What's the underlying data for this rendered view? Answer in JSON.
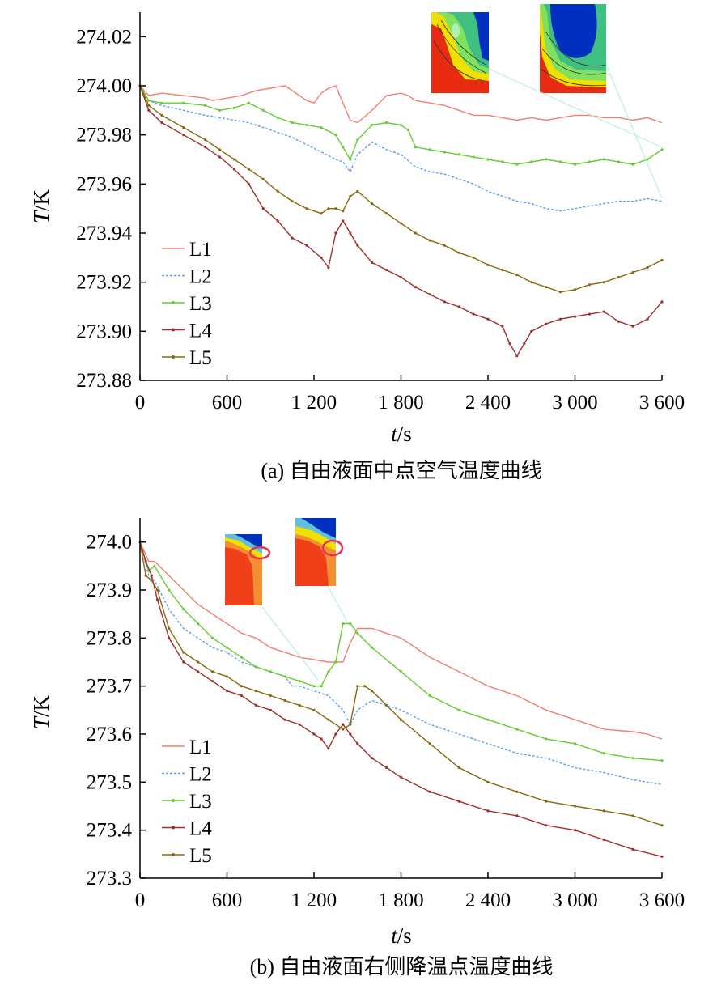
{
  "chart_data": [
    {
      "type": "line",
      "caption": "(a) 自由液面中点空气温度曲线",
      "xlabel": "t",
      "xunit": "/s",
      "ylabel": "T",
      "yunit": "/K",
      "xlim": [
        0,
        3600
      ],
      "ylim": [
        273.88,
        274.03
      ],
      "xticks": [
        0,
        600,
        1200,
        1800,
        2400,
        3000,
        3600
      ],
      "xtick_labels": [
        "0",
        "600",
        "1 200",
        "1 800",
        "2 400",
        "3 000",
        "3 600"
      ],
      "yticks": [
        273.88,
        273.9,
        273.92,
        273.94,
        273.96,
        273.98,
        274.0,
        274.02
      ],
      "ytick_labels": [
        "273.88",
        "273.90",
        "273.92",
        "273.94",
        "273.96",
        "273.98",
        "274.00",
        "274.02"
      ],
      "legend_position": "bottom-left",
      "grid": false,
      "series": [
        {
          "name": "L1",
          "color": "#f08070",
          "style": "solid",
          "x": [
            0,
            60,
            150,
            300,
            450,
            500,
            600,
            700,
            800,
            900,
            1000,
            1100,
            1150,
            1200,
            1250,
            1300,
            1350,
            1400,
            1450,
            1500,
            1600,
            1700,
            1800,
            1850,
            1900,
            2000,
            2100,
            2200,
            2300,
            2400,
            2500,
            2600,
            2700,
            2800,
            2900,
            3000,
            3100,
            3200,
            3300,
            3400,
            3500,
            3600
          ],
          "y": [
            274.0,
            273.996,
            273.997,
            273.996,
            273.995,
            273.994,
            273.995,
            273.996,
            273.998,
            273.999,
            274.0,
            273.996,
            273.994,
            273.993,
            273.997,
            273.999,
            274.0,
            273.993,
            273.986,
            273.985,
            273.99,
            273.996,
            273.997,
            273.996,
            273.994,
            273.993,
            273.992,
            273.99,
            273.988,
            273.988,
            273.987,
            273.986,
            273.987,
            273.986,
            273.987,
            273.988,
            273.988,
            273.987,
            273.987,
            273.986,
            273.987,
            273.985
          ]
        },
        {
          "name": "L2",
          "color": "#5ba0ea",
          "style": "dashed",
          "x": [
            0,
            60,
            150,
            300,
            450,
            550,
            650,
            750,
            850,
            950,
            1050,
            1150,
            1250,
            1350,
            1400,
            1450,
            1500,
            1600,
            1700,
            1800,
            1900,
            2000,
            2100,
            2200,
            2300,
            2400,
            2500,
            2600,
            2700,
            2800,
            2900,
            3000,
            3100,
            3200,
            3300,
            3400,
            3500,
            3600
          ],
          "y": [
            274.0,
            273.994,
            273.992,
            273.99,
            273.988,
            273.987,
            273.986,
            273.985,
            273.983,
            273.981,
            273.979,
            273.976,
            273.973,
            273.97,
            273.969,
            273.965,
            273.972,
            273.977,
            273.974,
            273.972,
            273.967,
            273.965,
            273.964,
            273.962,
            273.96,
            273.957,
            273.955,
            273.953,
            273.952,
            273.95,
            273.949,
            273.95,
            273.951,
            273.952,
            273.953,
            273.953,
            273.954,
            273.953
          ]
        },
        {
          "name": "L3",
          "color": "#66cc33",
          "style": "solid-dot",
          "x": [
            0,
            60,
            150,
            300,
            450,
            550,
            650,
            750,
            850,
            950,
            1050,
            1150,
            1250,
            1350,
            1400,
            1450,
            1500,
            1600,
            1700,
            1800,
            1850,
            1900,
            2000,
            2100,
            2200,
            2300,
            2400,
            2500,
            2600,
            2700,
            2800,
            2900,
            3000,
            3100,
            3200,
            3300,
            3400,
            3500,
            3600
          ],
          "y": [
            274.0,
            273.994,
            273.993,
            273.993,
            273.992,
            273.99,
            273.991,
            273.993,
            273.99,
            273.987,
            273.985,
            273.984,
            273.983,
            273.98,
            273.975,
            273.97,
            273.978,
            273.984,
            273.985,
            273.984,
            273.982,
            273.975,
            273.974,
            273.973,
            273.972,
            273.971,
            273.97,
            273.969,
            273.968,
            273.969,
            273.97,
            273.969,
            273.968,
            273.969,
            273.97,
            273.969,
            273.968,
            273.97,
            273.974
          ]
        },
        {
          "name": "L4",
          "color": "#a0302a",
          "style": "solid-dot",
          "x": [
            0,
            60,
            150,
            300,
            450,
            550,
            650,
            750,
            850,
            950,
            1050,
            1150,
            1250,
            1300,
            1350,
            1400,
            1450,
            1500,
            1600,
            1700,
            1800,
            1900,
            2000,
            2100,
            2200,
            2300,
            2400,
            2500,
            2550,
            2600,
            2650,
            2700,
            2800,
            2900,
            3000,
            3100,
            3200,
            3300,
            3400,
            3500,
            3600
          ],
          "y": [
            274.0,
            273.99,
            273.985,
            273.98,
            273.975,
            273.971,
            273.966,
            273.96,
            273.95,
            273.945,
            273.938,
            273.935,
            273.93,
            273.926,
            273.94,
            273.945,
            273.94,
            273.935,
            273.928,
            273.925,
            273.922,
            273.918,
            273.915,
            273.912,
            273.91,
            273.907,
            273.905,
            273.902,
            273.895,
            273.89,
            273.895,
            273.9,
            273.903,
            273.905,
            273.906,
            273.907,
            273.908,
            273.904,
            273.902,
            273.905,
            273.912
          ]
        },
        {
          "name": "L5",
          "color": "#8a6a10",
          "style": "solid-dot",
          "x": [
            0,
            60,
            150,
            300,
            450,
            550,
            650,
            750,
            850,
            950,
            1050,
            1150,
            1250,
            1300,
            1350,
            1400,
            1450,
            1500,
            1600,
            1700,
            1800,
            1900,
            2000,
            2100,
            2200,
            2300,
            2400,
            2500,
            2600,
            2700,
            2800,
            2900,
            3000,
            3100,
            3200,
            3300,
            3400,
            3500,
            3600
          ],
          "y": [
            274.0,
            273.992,
            273.988,
            273.983,
            273.978,
            273.974,
            273.97,
            273.966,
            273.962,
            273.957,
            273.953,
            273.95,
            273.948,
            273.95,
            273.95,
            273.949,
            273.955,
            273.957,
            273.952,
            273.948,
            273.944,
            273.94,
            273.937,
            273.935,
            273.932,
            273.93,
            273.927,
            273.925,
            273.923,
            273.92,
            273.918,
            273.916,
            273.917,
            273.919,
            273.92,
            273.922,
            273.924,
            273.926,
            273.929
          ]
        }
      ]
    },
    {
      "type": "line",
      "caption": "(b) 自由液面右侧降温点温度曲线",
      "xlabel": "t",
      "xunit": "/s",
      "ylabel": "T",
      "yunit": "/K",
      "xlim": [
        0,
        3600
      ],
      "ylim": [
        273.3,
        274.05
      ],
      "xticks": [
        0,
        600,
        1200,
        1800,
        2400,
        3000,
        3600
      ],
      "xtick_labels": [
        "0",
        "600",
        "1 200",
        "1 800",
        "2 400",
        "3 000",
        "3 600"
      ],
      "yticks": [
        273.3,
        273.4,
        273.5,
        273.6,
        273.7,
        273.8,
        273.9,
        274.0
      ],
      "ytick_labels": [
        "273.3",
        "273.4",
        "273.5",
        "273.6",
        "273.7",
        "273.8",
        "273.9",
        "274.0"
      ],
      "legend_position": "bottom-left",
      "grid": false,
      "series": [
        {
          "name": "L1",
          "color": "#f08070",
          "style": "solid",
          "x": [
            0,
            60,
            100,
            200,
            300,
            400,
            500,
            600,
            700,
            800,
            900,
            1000,
            1100,
            1200,
            1300,
            1400,
            1450,
            1500,
            1600,
            1800,
            2000,
            2200,
            2400,
            2600,
            2800,
            3000,
            3200,
            3400,
            3500,
            3600
          ],
          "y": [
            274.0,
            273.96,
            273.96,
            273.93,
            273.9,
            273.87,
            273.85,
            273.83,
            273.81,
            273.8,
            273.78,
            273.77,
            273.76,
            273.755,
            273.75,
            273.75,
            273.79,
            273.82,
            273.82,
            273.8,
            273.76,
            273.73,
            273.7,
            273.68,
            273.65,
            273.63,
            273.61,
            273.605,
            273.6,
            273.59
          ]
        },
        {
          "name": "L2",
          "color": "#5ba0ea",
          "style": "dashed",
          "x": [
            0,
            60,
            100,
            200,
            300,
            400,
            500,
            600,
            700,
            800,
            900,
            1000,
            1050,
            1100,
            1200,
            1300,
            1400,
            1450,
            1500,
            1600,
            1800,
            2000,
            2200,
            2400,
            2600,
            2800,
            3000,
            3200,
            3400,
            3600
          ],
          "y": [
            274.0,
            273.93,
            273.92,
            273.86,
            273.82,
            273.8,
            273.78,
            273.77,
            273.75,
            273.74,
            273.73,
            273.72,
            273.7,
            273.7,
            273.69,
            273.68,
            273.65,
            273.62,
            273.65,
            273.67,
            273.65,
            273.62,
            273.6,
            273.58,
            273.56,
            273.55,
            273.53,
            273.52,
            273.505,
            273.495
          ]
        },
        {
          "name": "L3",
          "color": "#66cc33",
          "style": "solid-dot",
          "x": [
            0,
            60,
            100,
            200,
            300,
            400,
            500,
            600,
            700,
            800,
            900,
            1000,
            1100,
            1200,
            1250,
            1300,
            1350,
            1400,
            1450,
            1500,
            1600,
            1800,
            2000,
            2200,
            2400,
            2600,
            2800,
            3000,
            3200,
            3400,
            3600
          ],
          "y": [
            274.0,
            273.94,
            273.95,
            273.9,
            273.86,
            273.83,
            273.8,
            273.78,
            273.76,
            273.74,
            273.73,
            273.72,
            273.71,
            273.7,
            273.7,
            273.73,
            273.75,
            273.83,
            273.83,
            273.81,
            273.78,
            273.73,
            273.68,
            273.65,
            273.63,
            273.61,
            273.59,
            273.58,
            273.56,
            273.55,
            273.545
          ]
        },
        {
          "name": "L4",
          "color": "#a0302a",
          "style": "solid-dot",
          "x": [
            0,
            40,
            80,
            120,
            200,
            300,
            400,
            500,
            600,
            700,
            800,
            900,
            1000,
            1100,
            1200,
            1250,
            1300,
            1350,
            1400,
            1450,
            1500,
            1600,
            1700,
            1800,
            2000,
            2200,
            2400,
            2600,
            2800,
            3000,
            3200,
            3400,
            3600
          ],
          "y": [
            274.0,
            273.96,
            273.93,
            273.88,
            273.8,
            273.75,
            273.73,
            273.71,
            273.69,
            273.68,
            273.66,
            273.65,
            273.63,
            273.62,
            273.6,
            273.59,
            273.57,
            273.6,
            273.62,
            273.6,
            273.58,
            273.55,
            273.53,
            273.51,
            273.48,
            273.46,
            273.44,
            273.43,
            273.41,
            273.4,
            273.38,
            273.36,
            273.345
          ]
        },
        {
          "name": "L5",
          "color": "#8a6a10",
          "style": "solid-dot",
          "x": [
            0,
            40,
            80,
            120,
            200,
            300,
            400,
            500,
            600,
            700,
            800,
            900,
            1000,
            1100,
            1200,
            1300,
            1400,
            1450,
            1500,
            1550,
            1600,
            1700,
            1800,
            2000,
            2200,
            2400,
            2600,
            2800,
            3000,
            3200,
            3400,
            3600
          ],
          "y": [
            274.0,
            273.93,
            273.92,
            273.9,
            273.82,
            273.77,
            273.75,
            273.73,
            273.72,
            273.7,
            273.69,
            273.68,
            273.67,
            273.66,
            273.65,
            273.63,
            273.61,
            273.62,
            273.7,
            273.7,
            273.69,
            273.66,
            273.63,
            273.58,
            273.53,
            273.5,
            273.48,
            273.46,
            273.45,
            273.44,
            273.43,
            273.41
          ]
        }
      ]
    }
  ],
  "insets": [
    {
      "name": "inset-a-1",
      "colors": [
        "#e82a10",
        "#f0e000",
        "#80e060",
        "#40c080",
        "#0030c0"
      ]
    },
    {
      "name": "inset-a-2",
      "colors": [
        "#e82a10",
        "#f0e000",
        "#80e060",
        "#40c080",
        "#0030c0"
      ]
    },
    {
      "name": "inset-b-1",
      "colors": [
        "#f0401a",
        "#f09030",
        "#f0e000",
        "#60c0e0",
        "#0030c0"
      ]
    },
    {
      "name": "inset-b-2",
      "colors": [
        "#f0401a",
        "#f09030",
        "#f0e000",
        "#60c0e0",
        "#0030c0"
      ]
    }
  ]
}
